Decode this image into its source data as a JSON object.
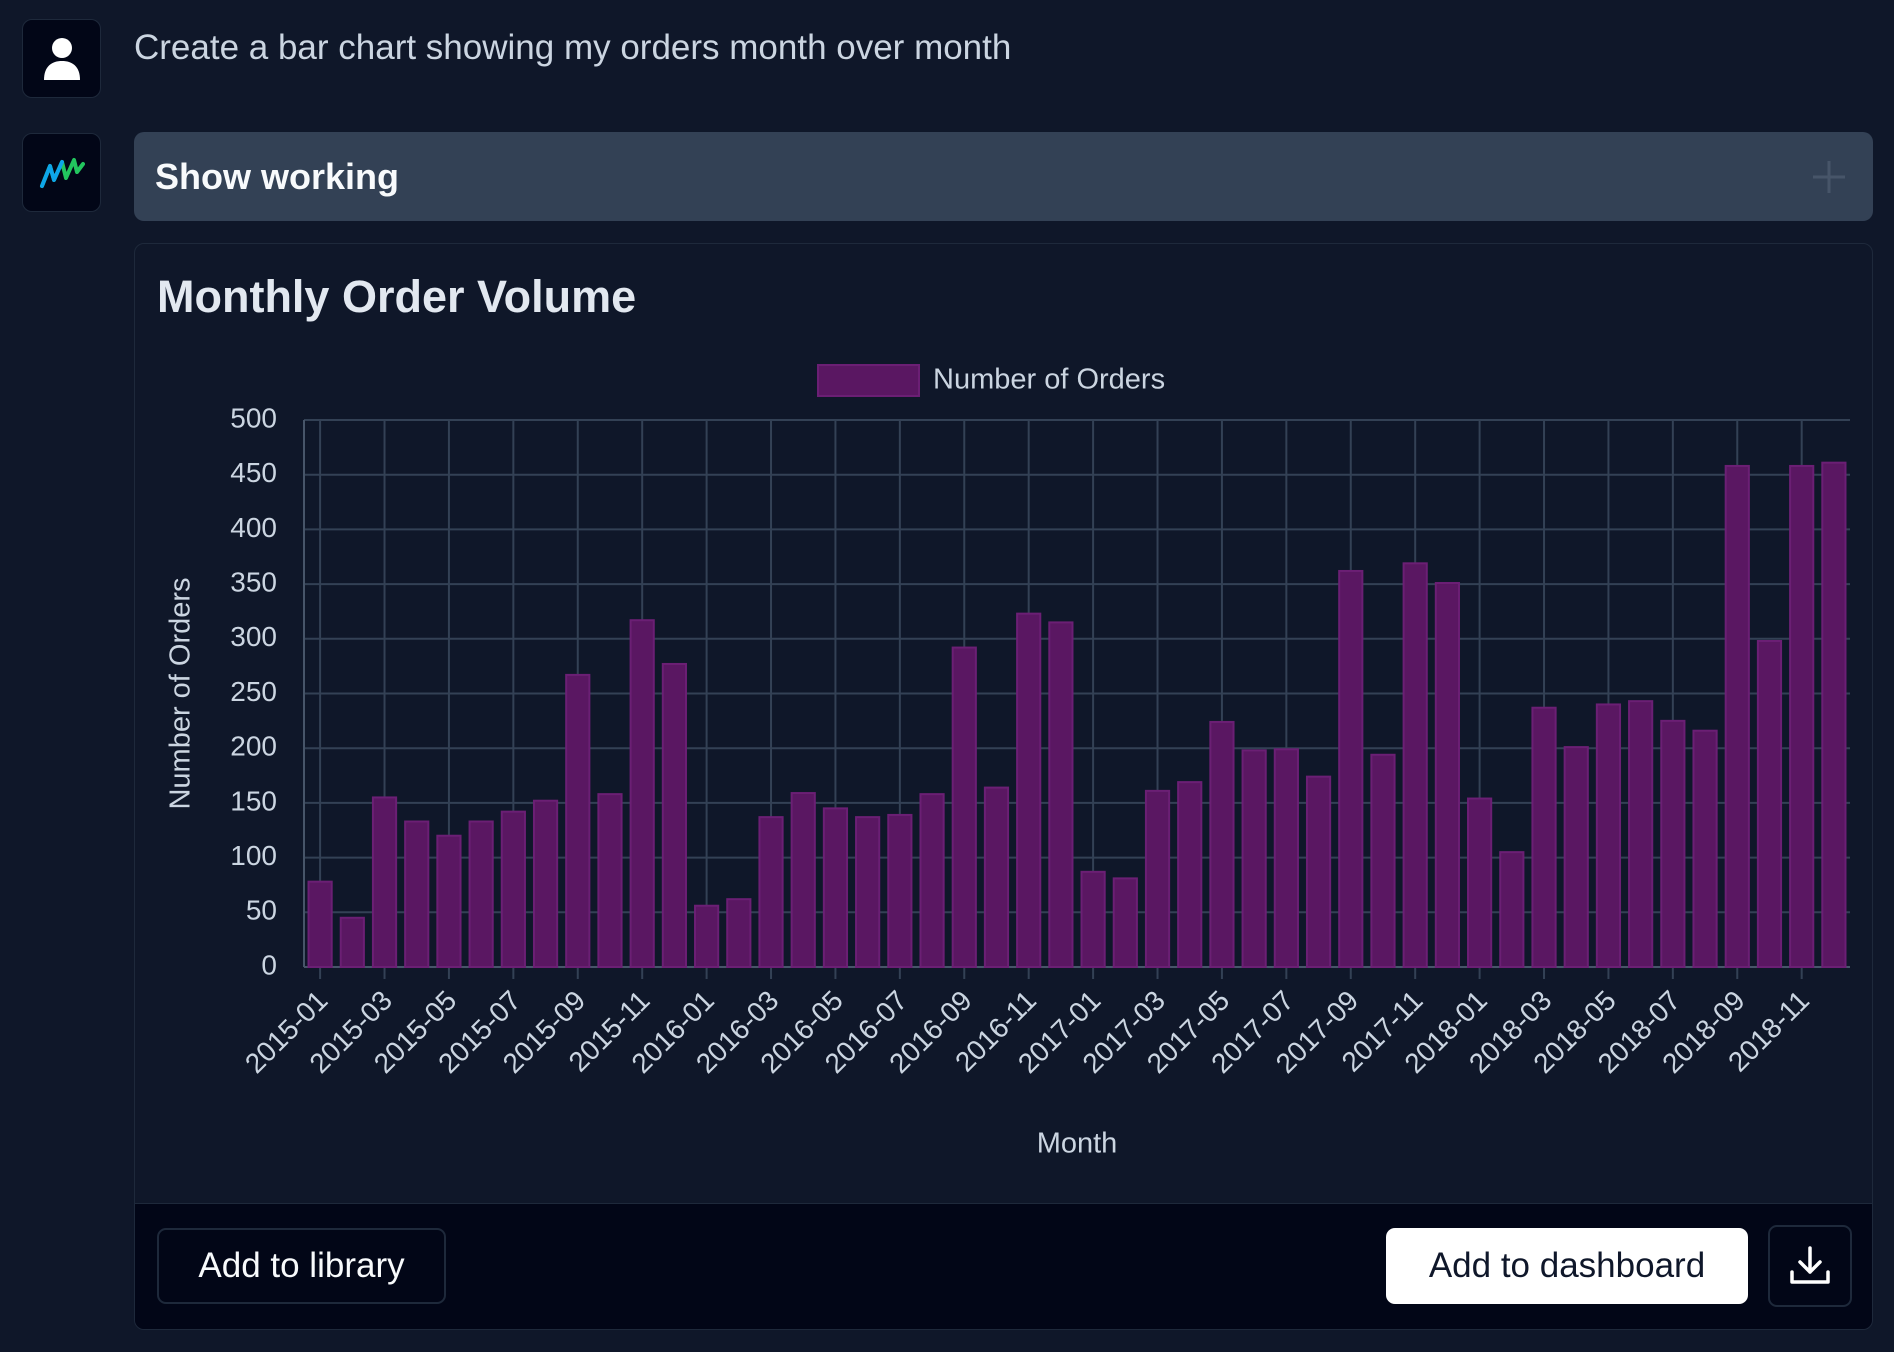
{
  "prompt": "Create a bar chart showing my orders month over month",
  "show_working": "Show working",
  "buttons": {
    "add_to_library": "Add to library",
    "add_to_dashboard": "Add to dashboard"
  },
  "chart_data": {
    "type": "bar",
    "title": "Monthly Order Volume",
    "x_label": "Month",
    "y_label": "Number of Orders",
    "categories": [
      "2015-01",
      null,
      "2015-03",
      null,
      "2015-05",
      null,
      "2015-07",
      null,
      "2015-09",
      null,
      "2015-11",
      null,
      "2016-01",
      null,
      "2016-03",
      null,
      "2016-05",
      null,
      "2016-07",
      null,
      "2016-09",
      null,
      "2016-11",
      null,
      "2017-01",
      null,
      "2017-03",
      null,
      "2017-05",
      null,
      "2017-07",
      null,
      "2017-09",
      null,
      "2017-11",
      null,
      "2018-01",
      null,
      "2018-03",
      null,
      "2018-05",
      null,
      "2018-07",
      null,
      "2018-09",
      null,
      "2018-11",
      null
    ],
    "series": [
      {
        "name": "Number of Orders",
        "color": "#5a1762",
        "values": [
          78,
          45,
          155,
          133,
          120,
          133,
          142,
          152,
          267,
          158,
          317,
          277,
          56,
          62,
          137,
          159,
          145,
          137,
          139,
          158,
          292,
          164,
          323,
          315,
          87,
          81,
          161,
          169,
          224,
          198,
          199,
          174,
          362,
          194,
          369,
          351,
          154,
          105,
          237,
          201,
          240,
          243,
          225,
          216,
          458,
          298,
          458,
          461
        ]
      }
    ],
    "ylim": [
      0,
      500
    ],
    "yticks": [
      0,
      50,
      100,
      150,
      200,
      250,
      300,
      350,
      400,
      450,
      500
    ],
    "grid": true
  }
}
